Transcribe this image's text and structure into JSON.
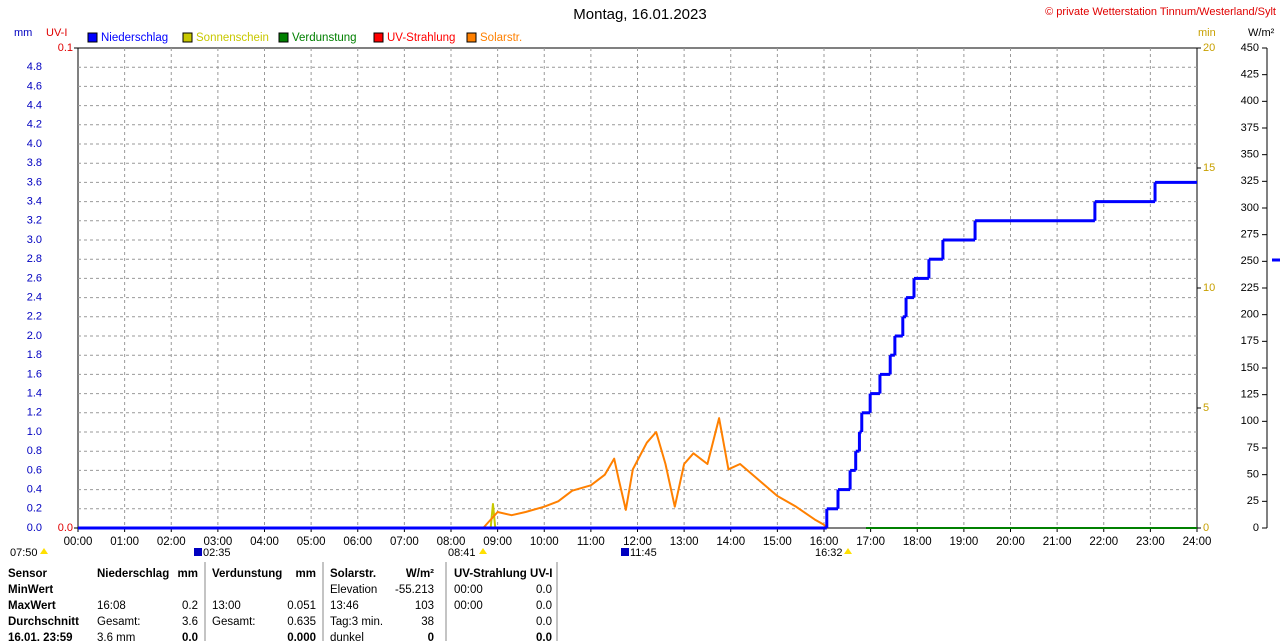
{
  "chart_data": {
    "type": "line",
    "title": "Montag, 16.01.2023",
    "source": "© private Wetterstation Tinnum/Westerland/Sylt",
    "y_label": "mm",
    "uv_label": "UV-I",
    "y2_label": "min",
    "y3_label": "W/m²",
    "grid": true,
    "xlim": [
      0,
      24
    ],
    "xticks": [
      {
        "value": 0,
        "label": "00:00"
      },
      {
        "value": 1,
        "label": "01:00"
      },
      {
        "value": 2,
        "label": "02:00"
      },
      {
        "value": 3,
        "label": "03:00"
      },
      {
        "value": 4,
        "label": "04:00"
      },
      {
        "value": 5,
        "label": "05:00"
      },
      {
        "value": 6,
        "label": "06:00"
      },
      {
        "value": 7,
        "label": "07:00"
      },
      {
        "value": 8,
        "label": "08:00"
      },
      {
        "value": 9,
        "label": "09:00"
      },
      {
        "value": 10,
        "label": "10:00"
      },
      {
        "value": 11,
        "label": "11:00"
      },
      {
        "value": 12,
        "label": "12:00"
      },
      {
        "value": 13,
        "label": "13:00"
      },
      {
        "value": 14,
        "label": "14:00"
      },
      {
        "value": 15,
        "label": "15:00"
      },
      {
        "value": 16,
        "label": "16:00"
      },
      {
        "value": 17,
        "label": "17:00"
      },
      {
        "value": 18,
        "label": "18:00"
      },
      {
        "value": 19,
        "label": "19:00"
      },
      {
        "value": 20,
        "label": "20:00"
      },
      {
        "value": 21,
        "label": "21:00"
      },
      {
        "value": 22,
        "label": "22:00"
      },
      {
        "value": 23,
        "label": "23:00"
      },
      {
        "value": 24,
        "label": "24:00"
      }
    ],
    "ylim": [
      0,
      5
    ],
    "yticks": [
      {
        "value": 0,
        "label": "0.0"
      },
      {
        "value": 0.2,
        "label": "0.2"
      },
      {
        "value": 0.4,
        "label": "0.4"
      },
      {
        "value": 0.6,
        "label": "0.6"
      },
      {
        "value": 0.8,
        "label": "0.8"
      },
      {
        "value": 1,
        "label": "1.0"
      },
      {
        "value": 1.2,
        "label": "1.2"
      },
      {
        "value": 1.4,
        "label": "1.4"
      },
      {
        "value": 1.6,
        "label": "1.6"
      },
      {
        "value": 1.8,
        "label": "1.8"
      },
      {
        "value": 2,
        "label": "2.0"
      },
      {
        "value": 2.2,
        "label": "2.2"
      },
      {
        "value": 2.4,
        "label": "2.4"
      },
      {
        "value": 2.6,
        "label": "2.6"
      },
      {
        "value": 2.8,
        "label": "2.8"
      },
      {
        "value": 3,
        "label": "3.0"
      },
      {
        "value": 3.2,
        "label": "3.2"
      },
      {
        "value": 3.4,
        "label": "3.4"
      },
      {
        "value": 3.6,
        "label": "3.6"
      },
      {
        "value": 3.8,
        "label": "3.8"
      },
      {
        "value": 4,
        "label": "4.0"
      },
      {
        "value": 4.2,
        "label": "4.2"
      },
      {
        "value": 4.4,
        "label": "4.4"
      },
      {
        "value": 4.6,
        "label": "4.6"
      },
      {
        "value": 4.8,
        "label": "4.8"
      }
    ],
    "uvlim": [
      0,
      0.1
    ],
    "uvticks": [
      {
        "value": 0,
        "label": "0.0"
      },
      {
        "value": 0.1,
        "label": "0.1"
      }
    ],
    "y2lim": [
      0,
      20
    ],
    "y2ticks": [
      0,
      5,
      10,
      15,
      20
    ],
    "y3lim": [
      0,
      450
    ],
    "y3ticks": [
      0,
      25,
      50,
      75,
      100,
      125,
      150,
      175,
      200,
      225,
      250,
      275,
      300,
      325,
      350,
      375,
      400,
      425,
      450
    ],
    "series": [
      {
        "name": "Niederschlag",
        "color": "#0000ff",
        "axis": "y",
        "step": true,
        "x": [
          0,
          16.06,
          16.3,
          16.56,
          16.68,
          16.76,
          16.81,
          16.99,
          17.2,
          17.42,
          17.52,
          17.69,
          17.76,
          17.93,
          18.25,
          18.55,
          19.24,
          21.81,
          23.1
        ],
        "values": [
          0,
          0.2,
          0.4,
          0.6,
          0.8,
          1.0,
          1.2,
          1.4,
          1.6,
          1.8,
          2.0,
          2.2,
          2.4,
          2.6,
          2.8,
          3.0,
          3.2,
          3.4,
          3.6
        ]
      },
      {
        "name": "Sonnenschein",
        "color": "#c8c800",
        "axis": "y2",
        "x": [
          8.85,
          8.9,
          8.95
        ],
        "values": [
          0,
          1,
          0
        ]
      },
      {
        "name": "Verdunstung",
        "color": "#008000",
        "axis": "y",
        "x": [
          16.9,
          24
        ],
        "values": [
          0,
          0
        ]
      },
      {
        "name": "UV-Strahlung",
        "color": "#ff0000",
        "axis": "uv",
        "x": [
          0,
          8.6
        ],
        "values": [
          0,
          0
        ]
      },
      {
        "name": "Solarstr.",
        "color": "#ff8000",
        "axis": "y3",
        "x": [
          8.69,
          9.0,
          9.3,
          9.6,
          10.0,
          10.3,
          10.6,
          11.0,
          11.3,
          11.5,
          11.6,
          11.75,
          11.9,
          12.2,
          12.4,
          12.6,
          12.8,
          13.0,
          13.2,
          13.5,
          13.75,
          13.95,
          14.2,
          14.6,
          15.0,
          15.4,
          15.8,
          16.0,
          16.05
        ],
        "values": [
          0,
          15,
          12,
          15,
          20,
          25,
          35,
          40,
          50,
          65,
          45,
          17,
          55,
          80,
          90,
          60,
          20,
          60,
          70,
          60,
          103,
          55,
          60,
          45,
          30,
          20,
          8,
          3,
          0
        ]
      }
    ]
  },
  "markers": [
    "07:50",
    "02:35",
    "08:41",
    "11:45",
    "16:32"
  ],
  "stats_table": {
    "rows": [
      [
        "Sensor",
        "Niederschlag",
        "mm",
        "Verdunstung",
        "mm",
        "Solarstr.",
        "W/m²",
        "UV-Strahlung UV-I",
        null
      ],
      [
        "MinWert",
        null,
        null,
        null,
        null,
        "Elevation",
        "-55.213",
        "00:00",
        "0.0"
      ],
      [
        "MaxWert",
        "16:08",
        "0.2",
        "13:00",
        "0.051",
        "13:46",
        "103",
        "00:00",
        "0.0"
      ],
      [
        "Durchschnitt",
        "Gesamt:",
        "3.6",
        "Gesamt:",
        "0.635",
        "Tag:3 min.",
        "38",
        null,
        "0.0"
      ],
      [
        "16.01. 23:59",
        "3.6 mm",
        "0.0",
        null,
        "0.000",
        "dunkel",
        "0",
        null,
        "0.0"
      ]
    ]
  }
}
